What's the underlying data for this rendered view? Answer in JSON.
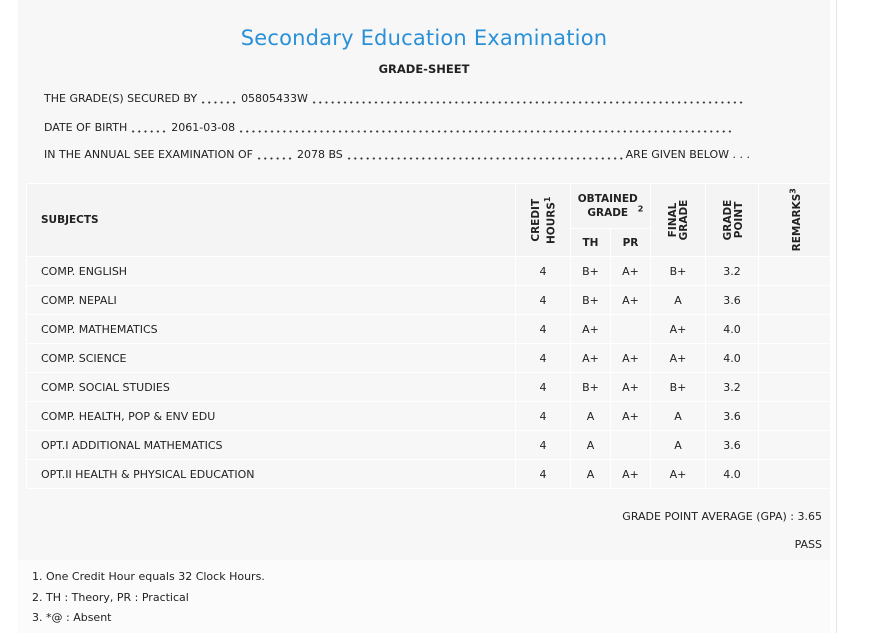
{
  "header": {
    "title": "Secondary Education Examination",
    "subtitle": "GRADE-SHEET"
  },
  "details": [
    {
      "label": "THE GRADE(S) SECURED BY",
      "value": "05805433W"
    },
    {
      "label": "DATE OF BIRTH",
      "value": "2061-03-08"
    },
    {
      "label": "IN THE ANNUAL SEE EXAMINATION OF",
      "value": "2078 BS",
      "suffix": "ARE GIVEN BELOW . . ."
    }
  ],
  "table": {
    "columns": {
      "subjects": "SUBJECTS",
      "credit_hours": {
        "text": "CREDIT HOURS",
        "note": "1"
      },
      "obtained_grade": {
        "text": "OBTAINED GRADE",
        "note": "2"
      },
      "th": "TH",
      "pr": "PR",
      "final_grade": "FINAL GRADE",
      "grade_point": "GRADE POINT",
      "remarks": {
        "text": "REMARKS",
        "note": "3"
      }
    },
    "rows": [
      [
        "COMP. ENGLISH",
        "4",
        "B+",
        "A+",
        "B+",
        "3.2"
      ],
      [
        "COMP. NEPALI",
        "4",
        "B+",
        "A+",
        "A",
        "3.6"
      ],
      [
        "COMP. MATHEMATICS",
        "4",
        "A+",
        null,
        "A+",
        "4.0"
      ],
      [
        "COMP. SCIENCE",
        "4",
        "A+",
        "A+",
        "A+",
        "4.0"
      ],
      [
        "COMP. SOCIAL STUDIES",
        "4",
        "B+",
        "A+",
        "B+",
        "3.2"
      ],
      [
        "COMP. HEALTH, POP & ENV EDU",
        "4",
        "A",
        "A+",
        "A",
        "3.6"
      ],
      [
        "OPT.I ADDITIONAL MATHEMATICS",
        "4",
        "A",
        null,
        "A",
        "3.6"
      ],
      [
        "OPT.II HEALTH & PHYSICAL EDUCATION",
        "4",
        "A",
        "A+",
        "A+",
        "4.0"
      ]
    ]
  },
  "summary": {
    "gpa_label": "GRADE POINT AVERAGE (GPA) :",
    "gpa": "3.65",
    "result": "PASS"
  },
  "notes": [
    "1. One Credit Hour equals 32 Clock Hours.",
    "2. TH : Theory, PR : Practical",
    "3. *@ : Absent"
  ]
}
